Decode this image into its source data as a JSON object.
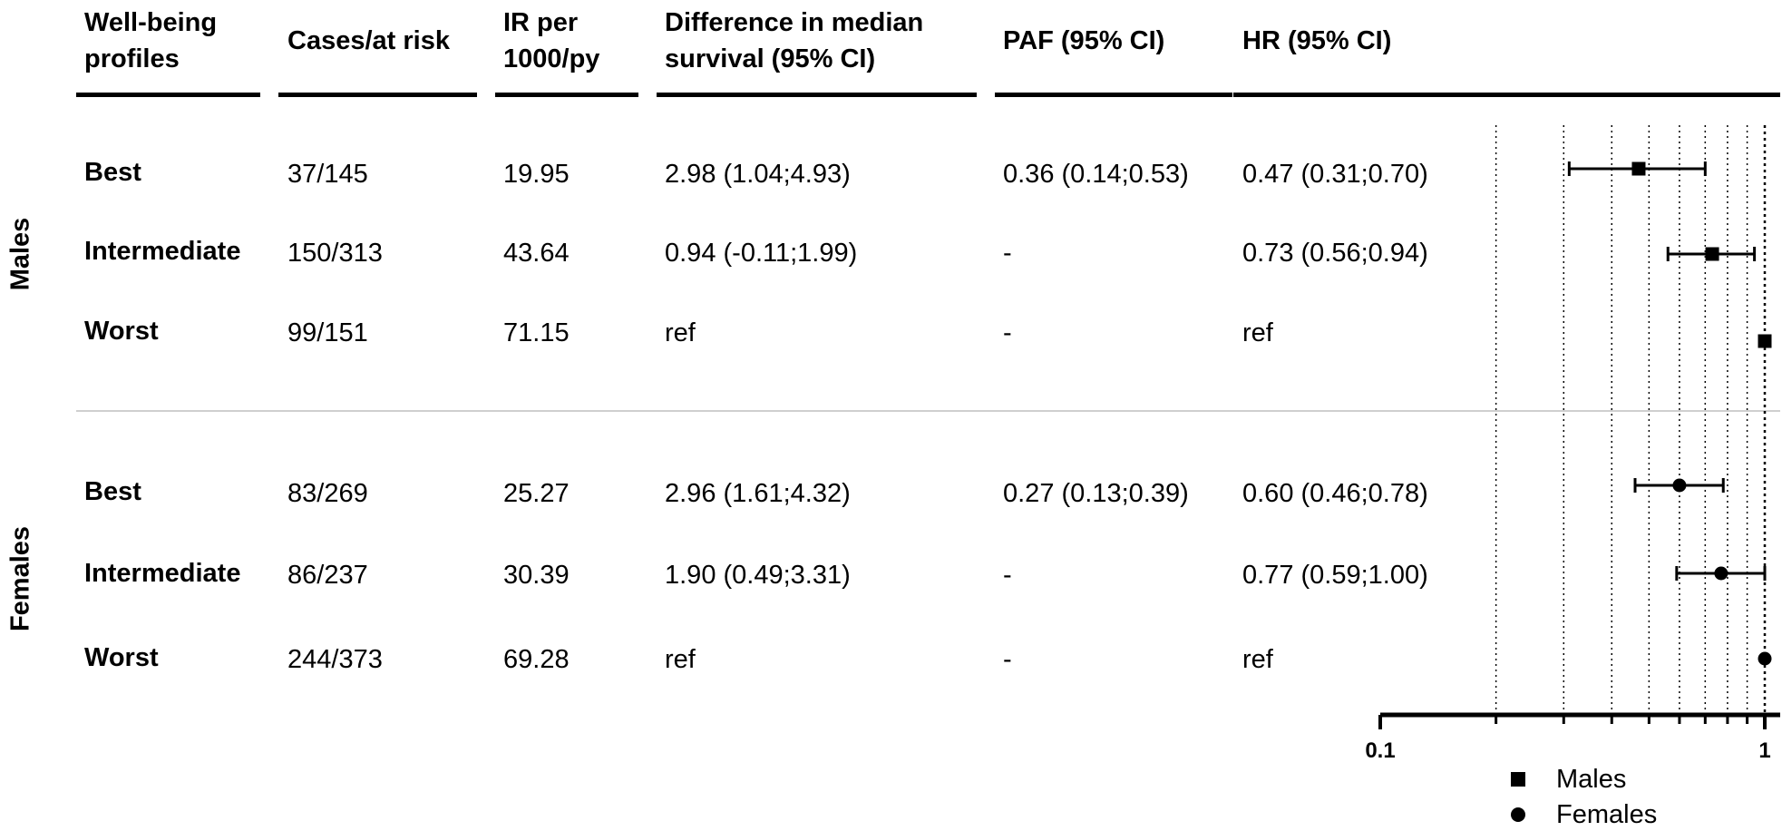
{
  "headers": {
    "profiles": [
      "Well-being",
      "profiles"
    ],
    "cases": "Cases/at risk",
    "ir": [
      "IR per",
      "1000/py"
    ],
    "diff": [
      "Difference in median",
      "survival (95% CI)"
    ],
    "paf": "PAF (95% CI)",
    "hr": "HR (95% CI)"
  },
  "groups": {
    "males": "Males",
    "females": "Females"
  },
  "rows": [
    {
      "profile": "Best",
      "cases": "37/145",
      "ir": "19.95",
      "diff": "2.98 (1.04;4.93)",
      "paf": "0.36 (0.14;0.53)",
      "hr": "0.47 (0.31;0.70)"
    },
    {
      "profile": "Intermediate",
      "cases": "150/313",
      "ir": "43.64",
      "diff": "0.94 (-0.11;1.99)",
      "paf": "-",
      "hr": "0.73 (0.56;0.94)"
    },
    {
      "profile": "Worst",
      "cases": "99/151",
      "ir": "71.15",
      "diff": "ref",
      "paf": "-",
      "hr": "ref"
    },
    {
      "profile": "Best",
      "cases": "83/269",
      "ir": "25.27",
      "diff": "2.96 (1.61;4.32)",
      "paf": "0.27 (0.13;0.39)",
      "hr": "0.60 (0.46;0.78)"
    },
    {
      "profile": "Intermediate",
      "cases": "86/237",
      "ir": "30.39",
      "diff": "1.90 (0.49;3.31)",
      "paf": "-",
      "hr": "0.77 (0.59;1.00)"
    },
    {
      "profile": "Worst",
      "cases": "244/373",
      "ir": "69.28",
      "diff": "ref",
      "paf": "-",
      "hr": "ref"
    }
  ],
  "legend": {
    "males": "Males",
    "females": "Females"
  },
  "chart_data": {
    "type": "scatter",
    "x_scale": "log",
    "xlim": [
      0.1,
      1
    ],
    "xticks": [
      0.1,
      1
    ],
    "xtick_labels": [
      "0.1",
      "1"
    ],
    "minor_gridlines": [
      0.2,
      0.3,
      0.4,
      0.5,
      0.6,
      0.7,
      0.8,
      0.9,
      1.0
    ],
    "reference_line": 1,
    "legend_position": "bottom-right",
    "series": [
      {
        "name": "Males",
        "marker": "square",
        "points": [
          {
            "row": "Best",
            "hr": 0.47,
            "lo": 0.31,
            "hi": 0.7
          },
          {
            "row": "Intermediate",
            "hr": 0.73,
            "lo": 0.56,
            "hi": 0.94
          },
          {
            "row": "Worst",
            "hr": 1.0,
            "lo": null,
            "hi": null
          }
        ]
      },
      {
        "name": "Females",
        "marker": "circle",
        "points": [
          {
            "row": "Best",
            "hr": 0.6,
            "lo": 0.46,
            "hi": 0.78
          },
          {
            "row": "Intermediate",
            "hr": 0.77,
            "lo": 0.59,
            "hi": 1.0
          },
          {
            "row": "Worst",
            "hr": 1.0,
            "lo": null,
            "hi": null
          }
        ]
      }
    ]
  }
}
